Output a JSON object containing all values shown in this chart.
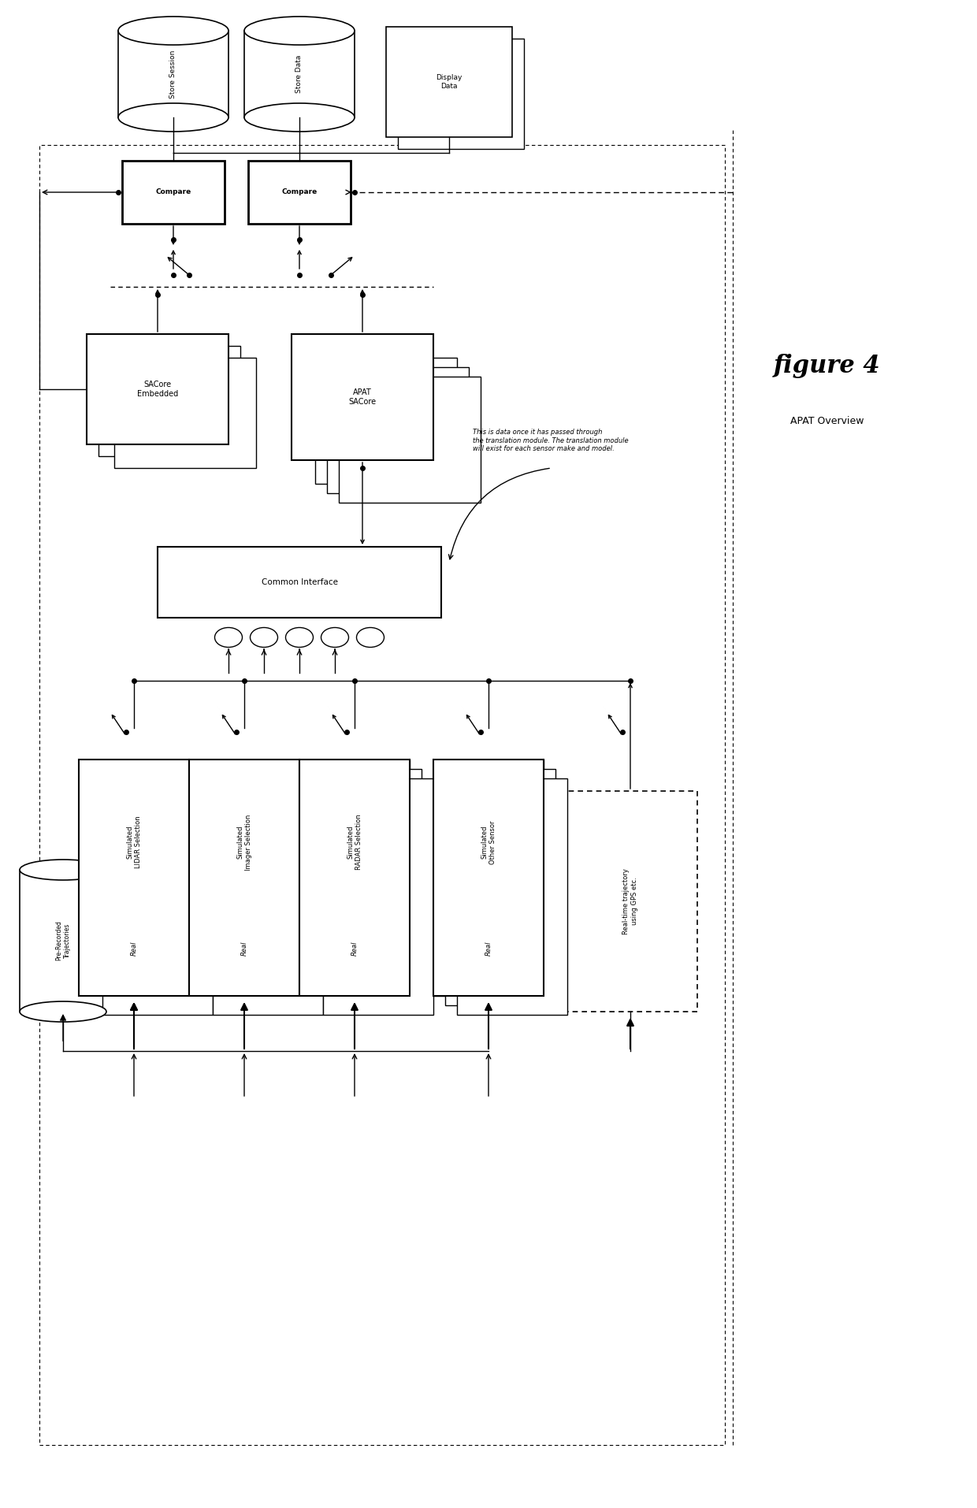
{
  "title": "figure 4",
  "subtitle": "APAT Overview",
  "bg_color": "#ffffff",
  "fig_width": 12.4,
  "fig_height": 19.14,
  "annotation_text": "This is data once it has passed through\nthe translation module. The translation module\nwill exist for each sensor make and model."
}
